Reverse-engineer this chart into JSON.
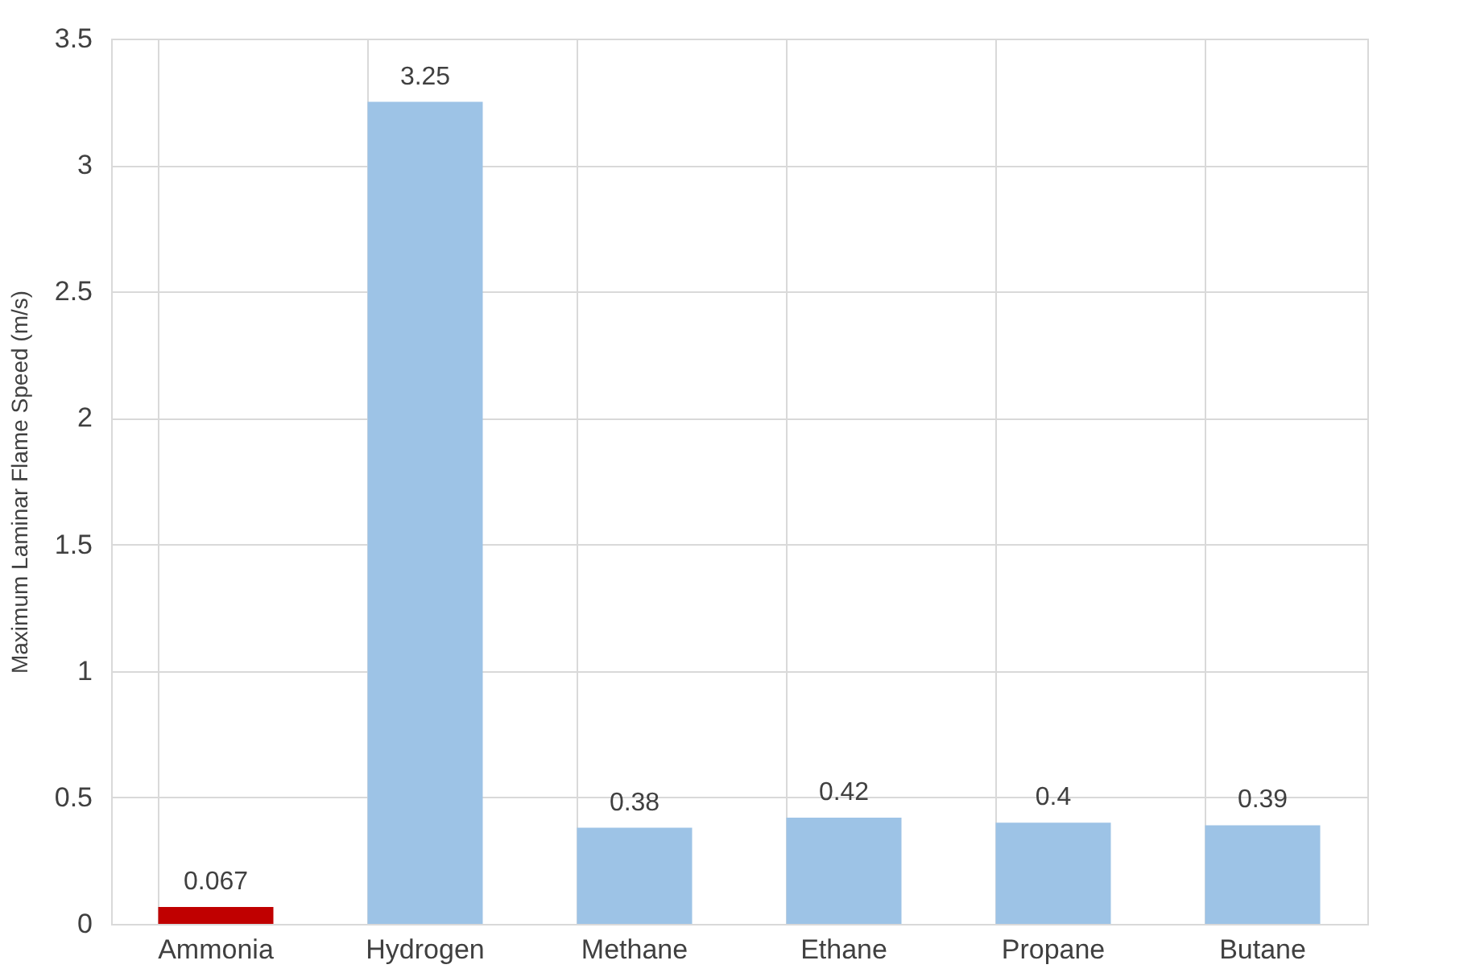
{
  "chart_data": {
    "type": "bar",
    "ylabel": "Maximum Laminar Flame Speed (m/s)",
    "categories": [
      "Ammonia",
      "Hydrogen",
      "Methane",
      "Ethane",
      "Propane",
      "Butane"
    ],
    "values": [
      0.067,
      3.25,
      0.38,
      0.42,
      0.4,
      0.39
    ],
    "colors": [
      "#c00000",
      "#9dc3e6",
      "#9dc3e6",
      "#9dc3e6",
      "#9dc3e6",
      "#9dc3e6"
    ],
    "ylim": [
      0,
      3.5
    ],
    "yticks": [
      0,
      0.5,
      1,
      1.5,
      2,
      2.5,
      3,
      3.5
    ],
    "grid": true,
    "data_labels": true
  }
}
